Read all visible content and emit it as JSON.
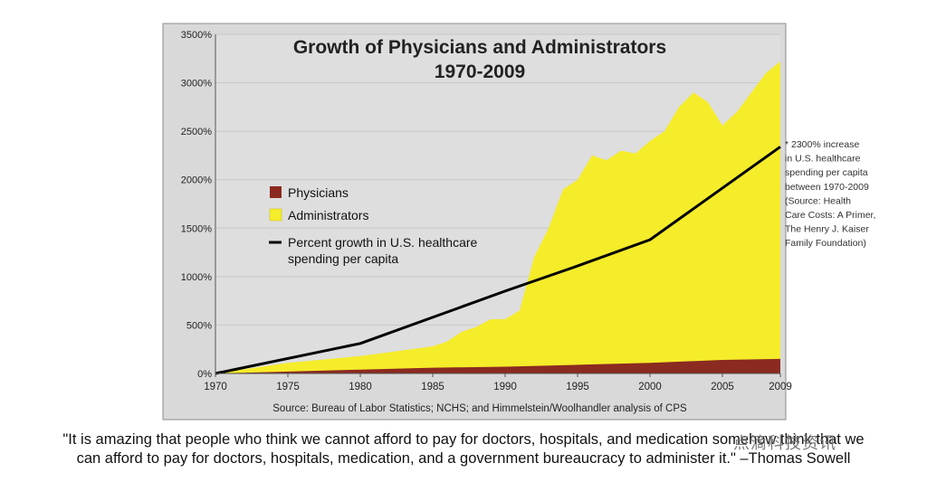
{
  "chart_data": {
    "type": "area",
    "title": "Growth of Physicians and Administrators",
    "subtitle": "1970-2009",
    "x_ticks": [
      "1970",
      "1975",
      "1980",
      "1985",
      "1990",
      "1995",
      "2000",
      "2005",
      "2009"
    ],
    "y_ticks": [
      "0%",
      "500%",
      "1000%",
      "1500%",
      "2000%",
      "2500%",
      "3000%",
      "3500%"
    ],
    "ylim": [
      0,
      3500
    ],
    "xlim": [
      1970,
      2009
    ],
    "grid": true,
    "legend_position": "left-center",
    "series": [
      {
        "name": "Administrators",
        "kind": "area",
        "color": "#f5ec2a",
        "x": [
          1970,
          1975,
          1980,
          1985,
          1986,
          1987,
          1988,
          1989,
          1990,
          1991,
          1992,
          1993,
          1994,
          1995,
          1996,
          1997,
          1998,
          1999,
          2000,
          2001,
          2002,
          2003,
          2004,
          2005,
          2006,
          2007,
          2008,
          2009
        ],
        "values": [
          0,
          110,
          180,
          280,
          330,
          430,
          480,
          560,
          560,
          650,
          1200,
          1500,
          1900,
          2000,
          2250,
          2200,
          2300,
          2270,
          2400,
          2500,
          2750,
          2900,
          2800,
          2560,
          2700,
          2900,
          3100,
          3220
        ]
      },
      {
        "name": "Physicians",
        "kind": "area",
        "color": "#8b2a20",
        "x": [
          1970,
          1975,
          1980,
          1985,
          1990,
          1995,
          2000,
          2005,
          2009
        ],
        "values": [
          0,
          20,
          40,
          60,
          70,
          90,
          110,
          140,
          150
        ]
      },
      {
        "name": "Percent growth in U.S. healthcare spending per capita",
        "kind": "line",
        "color": "#000000",
        "x": [
          1970,
          1980,
          1985,
          1990,
          1995,
          2000,
          2009
        ],
        "values": [
          0,
          310,
          580,
          850,
          1110,
          1380,
          2340
        ]
      }
    ],
    "legend": [
      "Physicians",
      "Administrators",
      "Percent growth in U.S. healthcare",
      "spending per capita"
    ],
    "source": "Source: Bureau of Labor Statistics; NCHS; and Himmelstein/Woolhandler analysis of CPS",
    "annotation": [
      "* 2300% increase",
      "in U.S. healthcare",
      "spending per capita",
      "between 1970-2009",
      "(Source: Health",
      "Care Costs: A Primer,",
      "The Henry J. Kaiser",
      "Family Foundation)"
    ]
  },
  "quote": {
    "line1": "\"It is amazing that people who think we cannot afford to pay for doctors, hospitals, and medication somehow think that we",
    "line2": "can afford to pay for doctors, hospitals, medication, and a government bureaucracy to administer it.\" –Thomas Sowell"
  },
  "watermark": "点滴科技资讯",
  "colors": {
    "frame_bg": "#dcdcdc",
    "plot_bg": "#dedede",
    "grid": "#c8c8c8",
    "administrators": "#f5ec2a",
    "physicians": "#8b2a20",
    "spending_line": "#000000"
  }
}
